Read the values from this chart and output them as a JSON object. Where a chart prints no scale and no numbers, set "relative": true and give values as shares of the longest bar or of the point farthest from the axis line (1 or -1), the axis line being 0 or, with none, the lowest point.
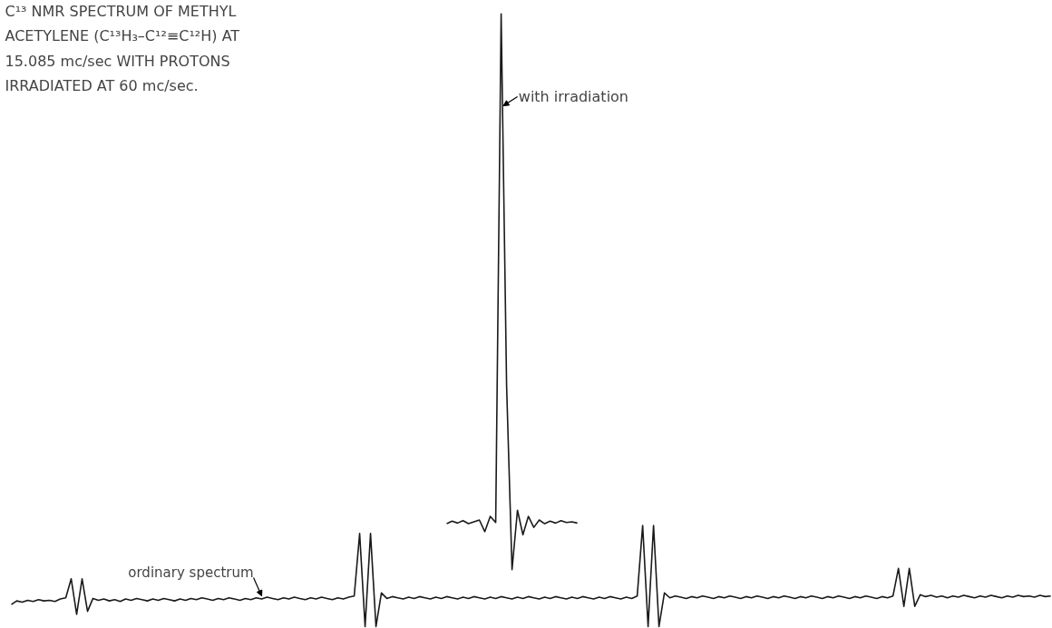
{
  "chart_data": {
    "type": "line",
    "relative": true,
    "title": "C¹³ NMR SPECTRUM OF METHYL ACETYLENE (C¹³H₃–C¹²≡C¹²H) AT 15.085 mc/sec WITH PROTONS IRRADIATED AT 60 mc/sec.",
    "categories": [
      null,
      null,
      null,
      null,
      null,
      null,
      null,
      null,
      null,
      null,
      null,
      null,
      null,
      null,
      null,
      null,
      null,
      null,
      null,
      null,
      null,
      null,
      null,
      null,
      null,
      null,
      null,
      null,
      null,
      null,
      null,
      null,
      null,
      null,
      null,
      null,
      null,
      null,
      null,
      null,
      null,
      null,
      null,
      null,
      null,
      null,
      null,
      null,
      null,
      null,
      null,
      null,
      null,
      null,
      null,
      null,
      null,
      null,
      null,
      null,
      null,
      null,
      null,
      null,
      null,
      null,
      null,
      null,
      null,
      null,
      null,
      null,
      null,
      null,
      null,
      null,
      null,
      null,
      null,
      null,
      null,
      null,
      null,
      null,
      null,
      null,
      null,
      null,
      null,
      null,
      null,
      null,
      null,
      null,
      null,
      null,
      null,
      null,
      null,
      null,
      null,
      null,
      null,
      null,
      null,
      null,
      null,
      null,
      null,
      null,
      null,
      null,
      null,
      null,
      null,
      null,
      null,
      null,
      null,
      null,
      null,
      null,
      null,
      null,
      null,
      null,
      null,
      null,
      null,
      null,
      null,
      null,
      null,
      null,
      null,
      null,
      null,
      null,
      null,
      null,
      null,
      null,
      null,
      null,
      null,
      null,
      null,
      null,
      null,
      null,
      null,
      null,
      null,
      null,
      null,
      null,
      null,
      null,
      null,
      null,
      null,
      null,
      null,
      null,
      null,
      null,
      null,
      null,
      null,
      null,
      null,
      null,
      null,
      null,
      null,
      null,
      null,
      null,
      null,
      null,
      null,
      null,
      null,
      null,
      null,
      null,
      null,
      null,
      null,
      null,
      null,
      null
    ],
    "series": [
      {
        "name": "ordinary spectrum",
        "color": "#1a1a1a",
        "values": [
          0.036,
          0.042,
          0.04,
          0.043,
          0.041,
          0.044,
          0.042,
          0.043,
          0.041,
          0.045,
          0.047,
          0.078,
          0.02,
          0.078,
          0.025,
          0.046,
          0.043,
          0.045,
          0.042,
          0.044,
          0.041,
          0.045,
          0.043,
          0.046,
          0.044,
          0.042,
          0.045,
          0.043,
          0.046,
          0.044,
          0.042,
          0.045,
          0.043,
          0.046,
          0.044,
          0.047,
          0.045,
          0.043,
          0.046,
          0.044,
          0.047,
          0.045,
          0.043,
          0.046,
          0.044,
          0.047,
          0.045,
          0.048,
          0.046,
          0.044,
          0.047,
          0.045,
          0.048,
          0.046,
          0.044,
          0.047,
          0.045,
          0.048,
          0.046,
          0.044,
          0.047,
          0.045,
          0.048,
          0.05,
          0.152,
          0.0,
          0.152,
          0.0,
          0.055,
          0.046,
          0.049,
          0.047,
          0.045,
          0.048,
          0.046,
          0.049,
          0.047,
          0.045,
          0.048,
          0.046,
          0.049,
          0.047,
          0.045,
          0.048,
          0.046,
          0.049,
          0.047,
          0.045,
          0.048,
          0.046,
          0.049,
          0.047,
          0.045,
          0.048,
          0.046,
          0.049,
          0.047,
          0.045,
          0.048,
          0.046,
          0.049,
          0.047,
          0.045,
          0.048,
          0.046,
          0.049,
          0.047,
          0.045,
          0.048,
          0.046,
          0.049,
          0.047,
          0.045,
          0.048,
          0.046,
          0.05,
          0.165,
          0.0,
          0.165,
          0.0,
          0.055,
          0.047,
          0.05,
          0.048,
          0.046,
          0.049,
          0.047,
          0.05,
          0.048,
          0.046,
          0.049,
          0.047,
          0.05,
          0.048,
          0.046,
          0.049,
          0.047,
          0.05,
          0.048,
          0.046,
          0.049,
          0.047,
          0.05,
          0.048,
          0.046,
          0.049,
          0.047,
          0.05,
          0.048,
          0.046,
          0.049,
          0.047,
          0.05,
          0.048,
          0.046,
          0.049,
          0.047,
          0.05,
          0.048,
          0.046,
          0.049,
          0.047,
          0.05,
          0.095,
          0.033,
          0.095,
          0.033,
          0.052,
          0.049,
          0.051,
          0.048,
          0.05,
          0.047,
          0.05,
          0.048,
          0.051,
          0.049,
          0.047,
          0.05,
          0.048,
          0.051,
          0.049,
          0.047,
          0.05,
          0.048,
          0.051,
          0.049,
          0.05,
          0.048,
          0.051,
          0.049,
          0.05
        ]
      },
      {
        "name": "with irradiation",
        "color": "#1a1a1a",
        "values": [
          null,
          null,
          null,
          null,
          null,
          null,
          null,
          null,
          null,
          null,
          null,
          null,
          null,
          null,
          null,
          null,
          null,
          null,
          null,
          null,
          null,
          null,
          null,
          null,
          null,
          null,
          null,
          null,
          null,
          null,
          null,
          null,
          null,
          null,
          null,
          null,
          null,
          null,
          null,
          null,
          null,
          null,
          null,
          null,
          null,
          null,
          null,
          null,
          null,
          null,
          null,
          null,
          null,
          null,
          null,
          null,
          null,
          null,
          null,
          null,
          null,
          null,
          null,
          null,
          null,
          null,
          null,
          null,
          null,
          null,
          null,
          null,
          null,
          null,
          null,
          null,
          null,
          null,
          null,
          null,
          0.168,
          0.172,
          0.169,
          0.173,
          0.168,
          0.171,
          0.174,
          0.155,
          0.18,
          0.17,
          1,
          0.394,
          0.093,
          0.19,
          0.15,
          0.18,
          0.162,
          0.174,
          0.168,
          0.172,
          0.169,
          0.173,
          0.17,
          0.171,
          0.169,
          null,
          null,
          null,
          null,
          null,
          null,
          null,
          null,
          null,
          null,
          null,
          null,
          null,
          null,
          null,
          null,
          null,
          null,
          null,
          null,
          null,
          null,
          null,
          null,
          null,
          null,
          null,
          null,
          null,
          null,
          null,
          null,
          null,
          null,
          null,
          null,
          null,
          null,
          null,
          null,
          null,
          null,
          null,
          null,
          null,
          null,
          null,
          null,
          null,
          null,
          null,
          null,
          null,
          null,
          null,
          null,
          null,
          null,
          null,
          null,
          null,
          null,
          null,
          null,
          null,
          null,
          null,
          null,
          null,
          null,
          null,
          null,
          null,
          null,
          null,
          null,
          null,
          null,
          null,
          null,
          null,
          null,
          null,
          null,
          null,
          null,
          null
        ]
      }
    ]
  }
}
